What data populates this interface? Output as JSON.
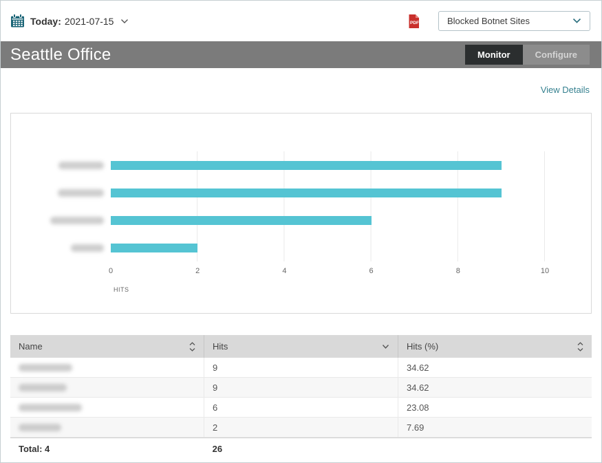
{
  "topbar": {
    "today_label": "Today:",
    "date": "2021-07-15",
    "report_select_value": "Blocked Botnet Sites",
    "icons": {
      "calendar": "calendar-icon",
      "pdf_export": "pdf-export-icon",
      "date_chevron": "chevron-down-icon",
      "select_chevron": "chevron-down-icon"
    }
  },
  "header": {
    "title": "Seattle Office",
    "monitor_tab": "Monitor",
    "configure_tab": "Configure"
  },
  "main": {
    "view_details_label": "View Details"
  },
  "chart_data": {
    "type": "bar",
    "orientation": "horizontal",
    "title": "",
    "categories": [
      "",
      "",
      "",
      ""
    ],
    "categories_note": "category labels are blurred/redacted in the screenshot",
    "values": [
      9,
      9,
      6,
      2
    ],
    "xlabel": "HITS",
    "xticks": [
      "0",
      "2",
      "4",
      "6",
      "8",
      "10"
    ],
    "xlim": [
      0,
      10
    ],
    "bar_color": "#55c4d3",
    "grid": true,
    "gridline_color": "#e9e9e9"
  },
  "table": {
    "columns": [
      {
        "label": "Name",
        "sort_state": "both"
      },
      {
        "label": "Hits",
        "sort_state": "desc"
      },
      {
        "label": "Hits (%)",
        "sort_state": "both"
      }
    ],
    "rows_note": "Name values are blurred/redacted in the screenshot",
    "rows": [
      {
        "name": "",
        "hits": "9",
        "hits_pct": "34.62"
      },
      {
        "name": "",
        "hits": "9",
        "hits_pct": "34.62"
      },
      {
        "name": "",
        "hits": "6",
        "hits_pct": "23.08"
      },
      {
        "name": "",
        "hits": "2",
        "hits_pct": "7.69"
      }
    ],
    "total_label": "Total: 4",
    "total_hits": "26"
  },
  "colors": {
    "accent_teal": "#55c4d3",
    "brand_dark_teal": "#1b6577",
    "header_gray": "#7b7b7b",
    "active_tab_bg": "#2b2e2f",
    "link_teal": "#35808f",
    "pdf_red": "#c9302c",
    "table_header_bg": "#d9d9d9"
  }
}
